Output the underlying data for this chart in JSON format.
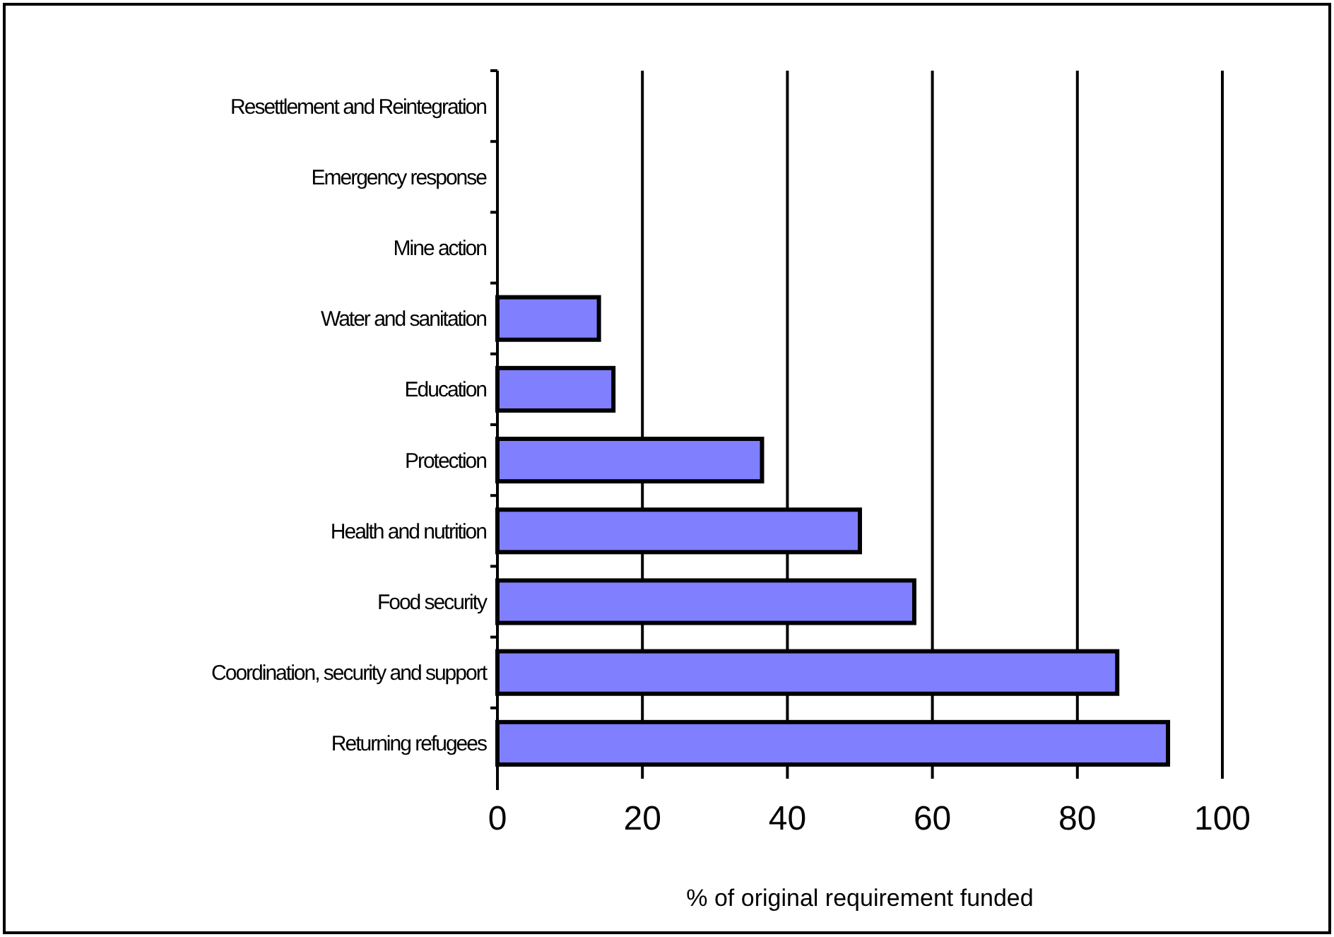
{
  "chart_data": {
    "type": "bar",
    "orientation": "horizontal",
    "xlabel": "% of original requirement funded",
    "categories": [
      "Resettlement and Reintegration",
      "Emergency response",
      "Mine action",
      "Water and sanitation",
      "Education",
      "Protection",
      "Health and nutrition",
      "Food security",
      "Coordination, security and support",
      "Returning refugees"
    ],
    "values": [
      null,
      null,
      null,
      14,
      16,
      36.5,
      50,
      57.5,
      85.5,
      92.5
    ],
    "color": "#8080ff",
    "xlim": [
      0,
      100
    ],
    "xticks": [
      0,
      20,
      40,
      60,
      80,
      100
    ],
    "grid": "x"
  }
}
